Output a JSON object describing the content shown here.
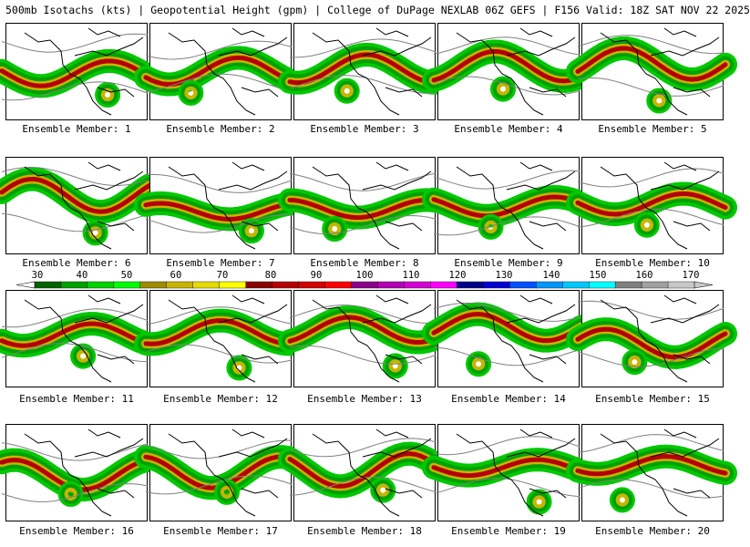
{
  "header": {
    "title": "500mb Isotachs (kts) | Geopotential Height (gpm) | College of DuPage NEXLAB   06Z GEFS | F156 Valid: 18Z SAT NOV 22 2025"
  },
  "members": [
    {
      "label": "Ensemble Member: 1"
    },
    {
      "label": "Ensemble Member: 2"
    },
    {
      "label": "Ensemble Member: 3"
    },
    {
      "label": "Ensemble Member: 4"
    },
    {
      "label": "Ensemble Member: 5"
    },
    {
      "label": "Ensemble Member: 6"
    },
    {
      "label": "Ensemble Member: 7"
    },
    {
      "label": "Ensemble Member: 8"
    },
    {
      "label": "Ensemble Member: 9"
    },
    {
      "label": "Ensemble Member: 10"
    },
    {
      "label": "Ensemble Member: 11"
    },
    {
      "label": "Ensemble Member: 12"
    },
    {
      "label": "Ensemble Member: 13"
    },
    {
      "label": "Ensemble Member: 14"
    },
    {
      "label": "Ensemble Member: 15"
    },
    {
      "label": "Ensemble Member: 16"
    },
    {
      "label": "Ensemble Member: 17"
    },
    {
      "label": "Ensemble Member: 18"
    },
    {
      "label": "Ensemble Member: 19"
    },
    {
      "label": "Ensemble Member: 20"
    }
  ],
  "colorbar": {
    "ticks": [
      "30",
      "40",
      "50",
      "60",
      "70",
      "80",
      "90",
      "100",
      "110",
      "120",
      "130",
      "140",
      "150",
      "160",
      "170"
    ],
    "colors": [
      "#006400",
      "#00a000",
      "#00d200",
      "#00ff00",
      "#a08c00",
      "#c8b400",
      "#e6dc00",
      "#ffff00",
      "#8b0000",
      "#b40000",
      "#d20000",
      "#ff0000",
      "#8b008b",
      "#b400b4",
      "#d200d2",
      "#ff00ff",
      "#00008b",
      "#0000d2",
      "#0050ff",
      "#0096ff",
      "#00c8ff",
      "#00ffff",
      "#808080",
      "#a0a0a0",
      "#c8c8c8"
    ],
    "palette": {
      "jet_outer": "#00c800",
      "jet_mid": "#00a000",
      "jet_core": "#c8b400",
      "jet_max": "#b40000",
      "height_contour": "#808080",
      "coastline": "#000000"
    }
  }
}
